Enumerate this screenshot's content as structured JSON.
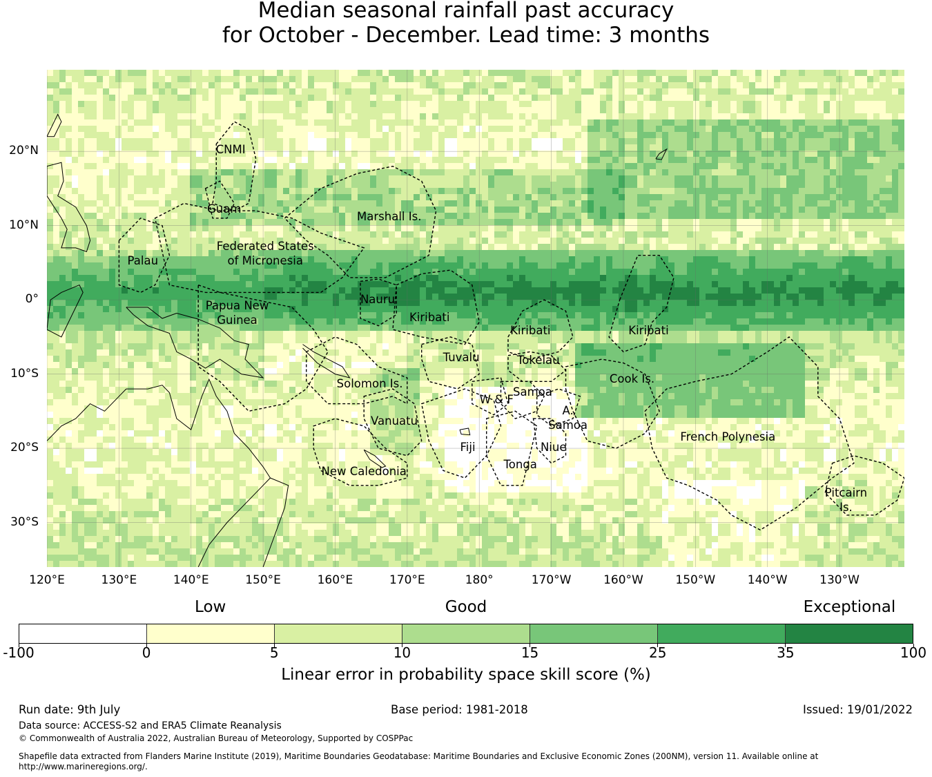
{
  "title": {
    "line1": "Median seasonal rainfall past accuracy",
    "line2": "for October - December. Lead time: 3 months"
  },
  "map": {
    "lat_labels": [
      "20°N",
      "10°N",
      "0°",
      "10°S",
      "20°S",
      "30°S"
    ],
    "lat_values": [
      20,
      10,
      0,
      -10,
      -20,
      -30
    ],
    "lon_labels": [
      "120°E",
      "130°E",
      "140°E",
      "150°E",
      "160°E",
      "170°E",
      "180°",
      "170°W",
      "160°W",
      "150°W",
      "140°W",
      "130°W"
    ],
    "lon_values": [
      120,
      130,
      140,
      150,
      160,
      170,
      180,
      190,
      200,
      210,
      220,
      230
    ],
    "extent": {
      "lon_min": 120,
      "lon_max": 239,
      "lat_min": -36,
      "lat_max": 31
    },
    "regions": [
      {
        "name": "CNMI",
        "lon": 145.5,
        "lat": 20.2
      },
      {
        "name": "Guam",
        "lon": 144.6,
        "lat": 12.2
      },
      {
        "name": "Marshall Is.",
        "lon": 167.5,
        "lat": 11.2
      },
      {
        "name": "Federated States",
        "name2": "of Micronesia",
        "lon": 150.3,
        "lat": 7.2
      },
      {
        "name": "Palau",
        "lon": 133.3,
        "lat": 5.2
      },
      {
        "name": "Papua New",
        "name2": "Guinea",
        "lon": 146.4,
        "lat": -0.8
      },
      {
        "name": "Nauru",
        "lon": 165.9,
        "lat": 0.0
      },
      {
        "name": "Kiribati",
        "lon": 173.1,
        "lat": -2.4
      },
      {
        "name": "Kiribati",
        "lon": 187.1,
        "lat": -4.2
      },
      {
        "name": "Kiribati",
        "lon": 203.5,
        "lat": -4.2
      },
      {
        "name": "Tuvalu",
        "lon": 177.5,
        "lat": -7.8
      },
      {
        "name": "Tokelau",
        "lon": 188.2,
        "lat": -8.2
      },
      {
        "name": "Solomon Is.",
        "lon": 164.8,
        "lat": -11.3
      },
      {
        "name": "Cook Is.",
        "lon": 201.2,
        "lat": -10.7
      },
      {
        "name": "Samoa",
        "lon": 187.4,
        "lat": -12.5
      },
      {
        "name": "W & F",
        "lon": 182.4,
        "lat": -13.5
      },
      {
        "name": "A.",
        "name2": "Samoa",
        "lon": 192.3,
        "lat": -15.0
      },
      {
        "name": "Vanuatu",
        "lon": 168.2,
        "lat": -16.4
      },
      {
        "name": "Fiji",
        "lon": 178.4,
        "lat": -19.9
      },
      {
        "name": "Niue",
        "lon": 190.3,
        "lat": -19.9
      },
      {
        "name": "Tonga",
        "lon": 185.7,
        "lat": -22.2
      },
      {
        "name": "French Polynesia",
        "lon": 214.5,
        "lat": -18.5
      },
      {
        "name": "New Caledonia",
        "lon": 164.0,
        "lat": -23.2
      },
      {
        "name": "Pitcairn",
        "name2": "Is.",
        "lon": 230.9,
        "lat": -26.0
      }
    ]
  },
  "colorbar": {
    "categories": [
      {
        "label": "Low",
        "tick_index": 1.5
      },
      {
        "label": "Good",
        "tick_index": 3.5
      },
      {
        "label": "Exceptional",
        "tick_index": 6.5
      }
    ],
    "ticks": [
      "-100",
      "0",
      "5",
      "10",
      "15",
      "25",
      "35",
      "100"
    ],
    "colors": [
      "#ffffff",
      "#ffffcc",
      "#d9f0a3",
      "#addd8e",
      "#78c679",
      "#41ab5d",
      "#238443"
    ],
    "label": "Linear error in probability space skill score (%)"
  },
  "footer": {
    "run_date": "Run date: 9th July",
    "base_period": "Base period: 1981-2018",
    "issued": "Issued: 19/01/2022",
    "data_source": "Data source: ACCESS-S2 and ERA5 Climate Reanalysis",
    "copyright": "© Commonwealth of Australia 2022, Australian Bureau of Meteorology, Supported by COSPPac",
    "shapefile_line1": "Shapefile data extracted from Flanders Marine Institute (2019), Maritime Boundaries Geodatabase: Maritime Boundaries and Exclusive Economic Zones (200NM), version 11. Available online at",
    "shapefile_line2": "http://www.marineregions.org/."
  }
}
